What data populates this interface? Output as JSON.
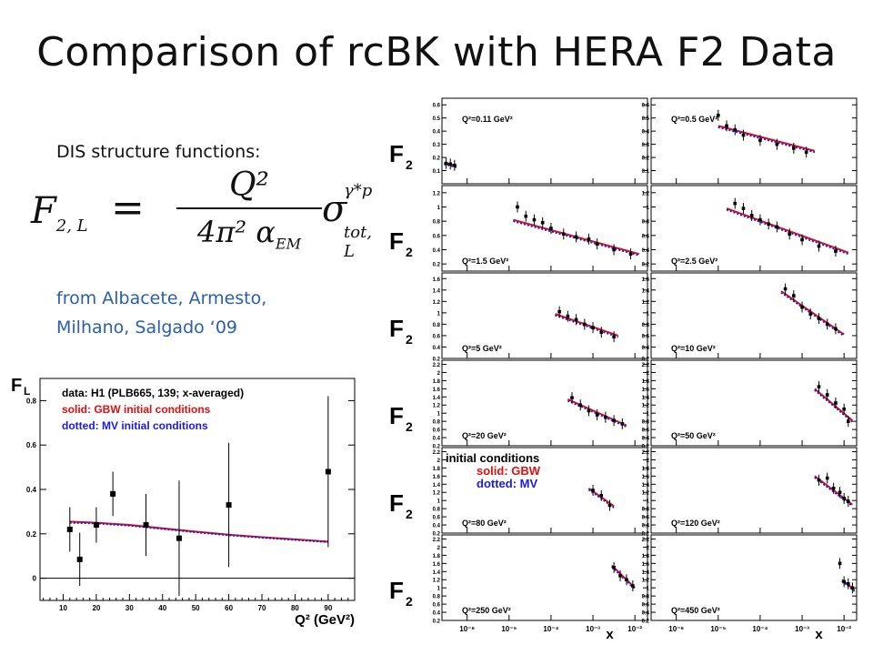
{
  "slide": {
    "title": "Comparison of rcBK with HERA F2 Data",
    "dis_label": "DIS structure functions:",
    "source_line1": "from Albacete, Armesto,",
    "source_line2": "Milhano, Salgado ‘09"
  },
  "formula": {
    "lhs": "F",
    "lhs_sub": "2, L",
    "equals": "=",
    "numerator": "Q²",
    "denominator": "4π² α",
    "denominator_sub": "EM",
    "sigma": "σ",
    "sigma_sup": "γ*p",
    "sigma_sub": "tot, L"
  },
  "colors": {
    "data": "#000000",
    "gbw": "#e01010",
    "mv": "#1a1ae8",
    "source_text": "#2a5fa8"
  },
  "chart_data": [
    {
      "type": "scatter",
      "ylabel": "F_L",
      "xlabel": "Q² (GeV²)",
      "xlim": [
        3,
        98
      ],
      "ylim": [
        -0.1,
        0.9
      ],
      "xticks": [
        10,
        20,
        30,
        40,
        50,
        60,
        70,
        80,
        90
      ],
      "yticks": [
        0,
        0.2,
        0.4,
        0.6,
        0.8
      ],
      "legend": [
        {
          "text": "data: H1 (PLB665, 139; x-averaged)",
          "color": "#000000"
        },
        {
          "text": "solid: GBW initial conditions",
          "color": "#e01010"
        },
        {
          "text": "dotted: MV initial conditions",
          "color": "#1a1ae8"
        }
      ],
      "series": [
        {
          "name": "data: H1 (PLB665, 139; x-averaged)",
          "kind": "points",
          "x": [
            12,
            15,
            20,
            25,
            35,
            45,
            60,
            90
          ],
          "y": [
            0.22,
            0.085,
            0.24,
            0.38,
            0.24,
            0.18,
            0.33,
            0.48
          ],
          "err": [
            0.1,
            0.12,
            0.08,
            0.1,
            0.14,
            0.26,
            0.28,
            0.34
          ]
        },
        {
          "name": "solid: GBW initial conditions",
          "kind": "line",
          "x": [
            12,
            20,
            30,
            40,
            50,
            60,
            70,
            80,
            90
          ],
          "y": [
            0.255,
            0.25,
            0.24,
            0.225,
            0.21,
            0.196,
            0.185,
            0.175,
            0.165
          ]
        },
        {
          "name": "dotted: MV initial conditions",
          "kind": "dotted",
          "x": [
            12,
            20,
            30,
            40,
            50,
            60,
            70,
            80,
            90
          ],
          "y": [
            0.25,
            0.247,
            0.237,
            0.222,
            0.207,
            0.194,
            0.183,
            0.173,
            0.163
          ]
        }
      ]
    },
    {
      "type": "scatter",
      "description_tag": "F2 vs x panel grid, 6 rows x 2 columns",
      "row_label": "F2",
      "xlabel": "x",
      "xlog": true,
      "xlim_exp": [
        -6.6,
        -1.7
      ],
      "xtick_exps": [
        -6,
        -5,
        -4,
        -3,
        -2
      ],
      "xtick_labels": [
        "10⁻⁶",
        "10⁻⁵",
        "10⁻⁴",
        "10⁻³",
        "10⁻²"
      ],
      "annotation": {
        "title": "initial conditions",
        "line2": "solid: GBW",
        "line3": "dotted: MV"
      },
      "panels": [
        {
          "label": "Q²=0.11 GeV²",
          "ylim": [
            0,
            0.65
          ],
          "yticks": [
            0.1,
            0.2,
            0.3,
            0.4,
            0.5,
            0.6
          ],
          "xexp": [
            -6.5,
            -6.4,
            -6.3
          ],
          "y": [
            0.155,
            0.15,
            0.14
          ],
          "curve_x": [
            -6.55,
            -6.25
          ],
          "curve_y": [
            0.16,
            0.135
          ]
        },
        {
          "label": "Q²=0.5 GeV²",
          "ylim": [
            0,
            0.65
          ],
          "yticks": [
            0.1,
            0.2,
            0.3,
            0.4,
            0.5,
            0.6
          ],
          "xexp": [
            -5.0,
            -4.8,
            -4.6,
            -4.4,
            -4.0,
            -3.6,
            -3.2,
            -2.9
          ],
          "y": [
            0.52,
            0.44,
            0.41,
            0.37,
            0.33,
            0.3,
            0.27,
            0.24
          ],
          "curve_x": [
            -5.0,
            -2.7
          ],
          "curve_y": [
            0.44,
            0.25
          ]
        },
        {
          "label": "Q²=1.5 GeV²",
          "ylim": [
            0.1,
            1.3
          ],
          "yticks": [
            0.2,
            0.4,
            0.6,
            0.8,
            1,
            1.2
          ],
          "xexp": [
            -4.8,
            -4.6,
            -4.4,
            -4.2,
            -4.0,
            -3.7,
            -3.4,
            -3.1,
            -2.9,
            -2.5,
            -2.1
          ],
          "y": [
            1.0,
            0.87,
            0.82,
            0.78,
            0.7,
            0.62,
            0.58,
            0.55,
            0.48,
            0.4,
            0.34
          ],
          "curve_x": [
            -4.9,
            -1.9
          ],
          "curve_y": [
            0.82,
            0.34
          ]
        },
        {
          "label": "Q²=2.5 GeV²",
          "ylim": [
            0.1,
            1.3
          ],
          "yticks": [
            0.2,
            0.4,
            0.6,
            0.8,
            1,
            1.2
          ],
          "xexp": [
            -4.6,
            -4.4,
            -4.2,
            -4.0,
            -3.8,
            -3.6,
            -3.3,
            -3.0,
            -2.6,
            -2.2
          ],
          "y": [
            1.05,
            0.98,
            0.88,
            0.82,
            0.76,
            0.72,
            0.62,
            0.54,
            0.45,
            0.38
          ],
          "curve_x": [
            -4.8,
            -1.9
          ],
          "curve_y": [
            0.98,
            0.36
          ]
        },
        {
          "label": "Q²=5 GeV²",
          "ylim": [
            0.2,
            1.7
          ],
          "yticks": [
            0.2,
            0.4,
            0.6,
            0.8,
            1,
            1.2,
            1.4,
            1.6
          ],
          "xexp": [
            -3.8,
            -3.6,
            -3.4,
            -3.2,
            -3.0,
            -2.8,
            -2.5
          ],
          "y": [
            1.02,
            0.94,
            0.88,
            0.8,
            0.74,
            0.66,
            0.58
          ],
          "curve_x": [
            -3.9,
            -2.4
          ],
          "curve_y": [
            0.98,
            0.6
          ]
        },
        {
          "label": "Q²=10 GeV²",
          "ylim": [
            0.2,
            1.7
          ],
          "yticks": [
            0.2,
            0.4,
            0.6,
            0.8,
            1,
            1.2,
            1.4,
            1.6
          ],
          "xexp": [
            -3.4,
            -3.2,
            -3.0,
            -2.8,
            -2.6,
            -2.4,
            -2.2
          ],
          "y": [
            1.42,
            1.3,
            1.1,
            0.98,
            0.9,
            0.8,
            0.72
          ],
          "curve_x": [
            -3.5,
            -2.0
          ],
          "curve_y": [
            1.38,
            0.62
          ]
        },
        {
          "label": "Q²=20 GeV²",
          "ylim": [
            0.2,
            2.3
          ],
          "yticks": [
            0.2,
            0.4,
            0.6,
            0.8,
            1,
            1.2,
            1.4,
            1.6,
            1.8,
            2,
            2.2
          ],
          "xexp": [
            -3.5,
            -3.3,
            -3.1,
            -2.9,
            -2.7,
            -2.5,
            -2.3
          ],
          "y": [
            1.38,
            1.2,
            1.06,
            0.96,
            0.9,
            0.82,
            0.74
          ],
          "curve_x": [
            -3.6,
            -2.2
          ],
          "curve_y": [
            1.34,
            0.7
          ]
        },
        {
          "label": "Q²=50 GeV²",
          "ylim": [
            0.2,
            2.3
          ],
          "yticks": [
            0.2,
            0.4,
            0.6,
            0.8,
            1,
            1.2,
            1.4,
            1.6,
            1.8,
            2,
            2.2
          ],
          "xexp": [
            -2.6,
            -2.4,
            -2.2,
            -2.0,
            -1.9
          ],
          "y": [
            1.65,
            1.45,
            1.25,
            1.1,
            0.8
          ],
          "curve_x": [
            -2.7,
            -1.8
          ],
          "curve_y": [
            1.6,
            0.82
          ]
        },
        {
          "label": "Q²=80 GeV²",
          "ylim": [
            0.2,
            2.3
          ],
          "yticks": [
            0.2,
            0.4,
            0.6,
            0.8,
            1,
            1.2,
            1.4,
            1.6,
            1.8,
            2,
            2.2
          ],
          "xexp": [
            -3.0,
            -2.8,
            -2.6
          ],
          "y": [
            1.25,
            1.12,
            0.88
          ],
          "curve_x": [
            -3.1,
            -2.5
          ],
          "curve_y": [
            1.3,
            0.86
          ]
        },
        {
          "label": "Q²=120 GeV²",
          "ylim": [
            0.2,
            2.3
          ],
          "yticks": [
            0.2,
            0.4,
            0.6,
            0.8,
            1,
            1.2,
            1.4,
            1.6,
            1.8,
            2,
            2.2
          ],
          "xexp": [
            -2.6,
            -2.4,
            -2.25,
            -2.1,
            -2.0,
            -1.9
          ],
          "y": [
            1.5,
            1.55,
            1.3,
            1.2,
            1.05,
            0.98
          ],
          "curve_x": [
            -2.7,
            -1.8
          ],
          "curve_y": [
            1.6,
            0.9
          ]
        },
        {
          "label": "Q²=250 GeV²",
          "ylim": [
            0.2,
            2.3
          ],
          "yticks": [
            0.2,
            0.4,
            0.6,
            0.8,
            1,
            1.2,
            1.4,
            1.6,
            1.8,
            2,
            2.2
          ],
          "xexp": [
            -2.5,
            -2.35,
            -2.2,
            -2.05
          ],
          "y": [
            1.5,
            1.3,
            1.2,
            1.05
          ],
          "curve_x": [
            -2.55,
            -2.0
          ],
          "curve_y": [
            1.55,
            1.0
          ]
        },
        {
          "label": "Q²=450 GeV²",
          "ylim": [
            0.2,
            2.3
          ],
          "yticks": [
            0.2,
            0.4,
            0.6,
            0.8,
            1,
            1.2,
            1.4,
            1.6,
            1.8,
            2,
            2.2
          ],
          "xexp": [
            -2.1,
            -2.0,
            -1.9,
            -1.8
          ],
          "y": [
            1.6,
            1.15,
            1.1,
            1.0
          ],
          "curve_x": [
            -2.05,
            -1.75
          ],
          "curve_y": [
            1.2,
            0.95
          ]
        }
      ]
    }
  ]
}
